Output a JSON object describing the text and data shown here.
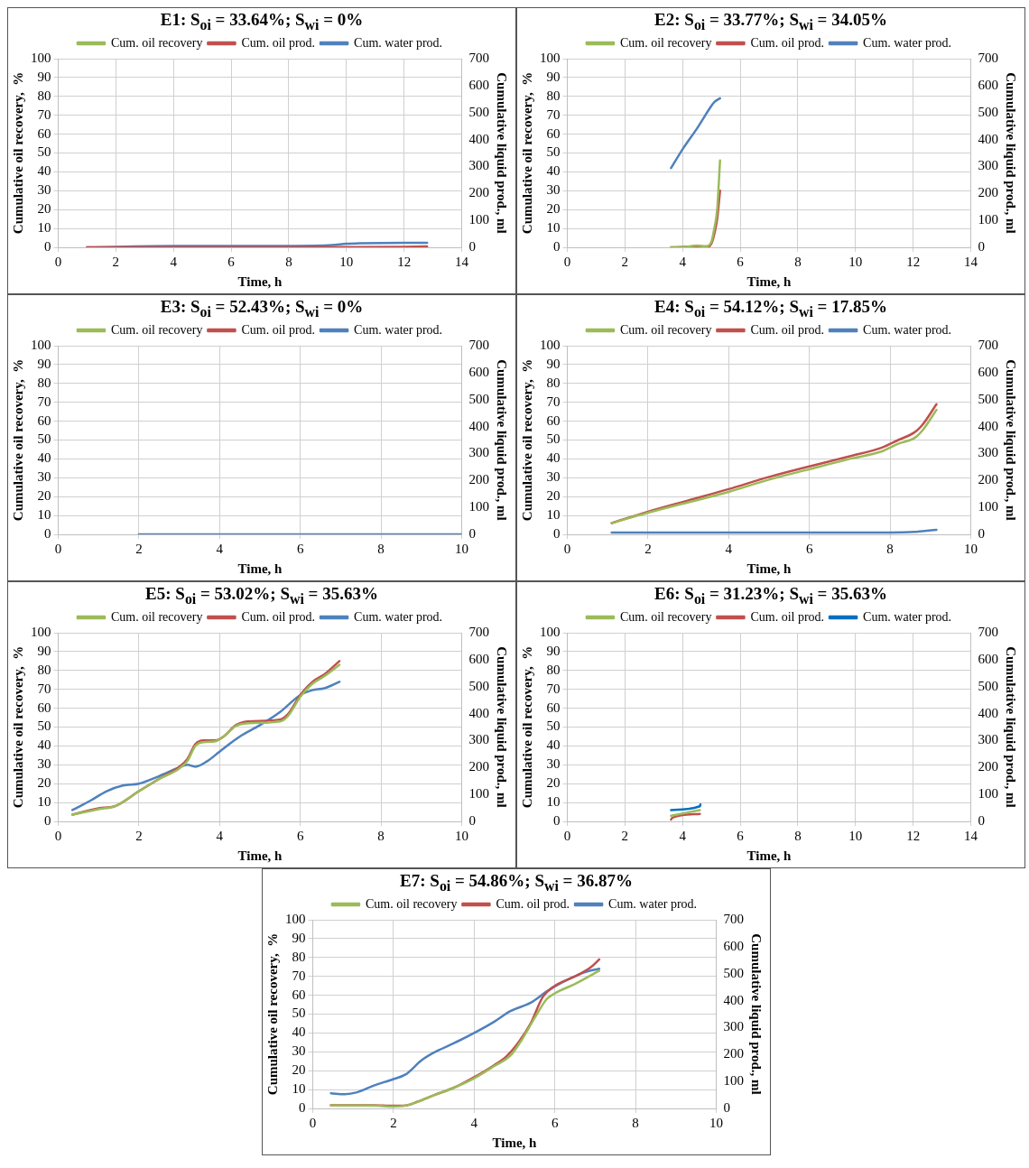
{
  "chart_data": [
    {
      "type": "line",
      "title": "E1: S$_{oi}$ = 33.64%; S$_{wi}$ = 0%",
      "xlabel": "Time, h",
      "ylabel": "Cumulative oil recovery,  %",
      "y2label": "Cumulative liquid prod., ml",
      "xlim": [
        0,
        14
      ],
      "xticks": [
        0,
        2,
        4,
        6,
        8,
        10,
        12,
        14
      ],
      "ylim": [
        0,
        100
      ],
      "yticks": [
        0,
        10,
        20,
        30,
        40,
        50,
        60,
        70,
        80,
        90,
        100
      ],
      "y2lim": [
        0,
        700
      ],
      "y2ticks": [
        0,
        100,
        200,
        300,
        400,
        500,
        600,
        700
      ],
      "grid": true,
      "legend": "top",
      "marker": "none",
      "series": [
        {
          "name": "Cum. oil recovery",
          "color": "#9bbb59"
        },
        {
          "name": "Cum. oil prod.",
          "color": "#c0504d",
          "axis": "y2",
          "x": [
            1,
            4,
            8,
            10,
            12,
            12.8
          ],
          "values": [
            0,
            0,
            0,
            1,
            2,
            3
          ]
        },
        {
          "name": "Cum. water prod.",
          "color": "#4f81bd",
          "axis": "y2",
          "x": [
            1,
            4,
            8,
            9.5,
            10,
            10.5,
            12,
            12.8
          ],
          "values": [
            0,
            5,
            5,
            8,
            13,
            15,
            17,
            17
          ]
        }
      ]
    },
    {
      "type": "line",
      "title": "E2: S$_{oi}$ = 33.77%; S$_{wi}$ = 34.05%",
      "xlabel": "Time, h",
      "ylabel": "Cumulative oil recovery,  %",
      "y2label": "Cumulative liquid prod., ml",
      "xlim": [
        0,
        14
      ],
      "xticks": [
        0,
        2,
        4,
        6,
        8,
        10,
        12,
        14
      ],
      "ylim": [
        0,
        100
      ],
      "yticks": [
        0,
        10,
        20,
        30,
        40,
        50,
        60,
        70,
        80,
        90,
        100
      ],
      "y2lim": [
        0,
        700
      ],
      "y2ticks": [
        0,
        100,
        200,
        300,
        400,
        500,
        600,
        700
      ],
      "grid": true,
      "legend": "top",
      "marker": "none",
      "series": [
        {
          "name": "Cum. oil recovery",
          "color": "#9bbb59",
          "x": [
            3.6,
            4,
            4.5,
            4.8,
            5,
            5.1,
            5.2,
            5.3
          ],
          "values": [
            0,
            0,
            1,
            0.5,
            3,
            10,
            20,
            46
          ]
        },
        {
          "name": "Cum. oil prod.",
          "color": "#c0504d",
          "axis": "y2",
          "x": [
            3.6,
            4.5,
            4.9,
            5,
            5.1,
            5.2,
            5.3
          ],
          "values": [
            0,
            3,
            3,
            14,
            49,
            105,
            210
          ]
        },
        {
          "name": "Cum. water prod.",
          "color": "#4f81bd",
          "axis": "y2",
          "x": [
            3.6,
            4,
            4.5,
            5,
            5.1,
            5.3
          ],
          "values": [
            294,
            364,
            441,
            525,
            539,
            553
          ]
        }
      ]
    },
    {
      "type": "line",
      "title": "E3: S$_{oi}$ = 52.43%; S$_{wi}$ = 0%",
      "xlabel": "Time, h",
      "ylabel": "Cumulative oil recovery,  %",
      "y2label": "Cumulative liquid prod., ml",
      "xlim": [
        0,
        10
      ],
      "xticks": [
        0,
        2,
        4,
        6,
        8,
        10
      ],
      "ylim": [
        0,
        100
      ],
      "yticks": [
        0,
        10,
        20,
        30,
        40,
        50,
        60,
        70,
        80,
        90,
        100
      ],
      "y2lim": [
        0,
        700
      ],
      "y2ticks": [
        0,
        100,
        200,
        300,
        400,
        500,
        600,
        700
      ],
      "grid": true,
      "legend": "top",
      "marker": "none",
      "series": [
        {
          "name": "Cum. oil recovery",
          "color": "#9bbb59"
        },
        {
          "name": "Cum. oil prod.",
          "color": "#c0504d",
          "axis": "y2"
        },
        {
          "name": "Cum. water prod.",
          "color": "#4f81bd",
          "axis": "y2",
          "x": [
            2,
            10
          ],
          "values": [
            0,
            0
          ]
        }
      ]
    },
    {
      "type": "line",
      "title": "E4: S$_{oi}$ = 54.12%; S$_{wi}$ = 17.85%",
      "xlabel": "Time, h",
      "ylabel": "Cumulative oil recovery,  %",
      "y2label": "Cumulative liquid prod., ml",
      "xlim": [
        0,
        10
      ],
      "xticks": [
        0,
        2,
        4,
        6,
        8,
        10
      ],
      "ylim": [
        0,
        100
      ],
      "yticks": [
        0,
        10,
        20,
        30,
        40,
        50,
        60,
        70,
        80,
        90,
        100
      ],
      "y2lim": [
        0,
        700
      ],
      "y2ticks": [
        0,
        100,
        200,
        300,
        400,
        500,
        600,
        700
      ],
      "grid": true,
      "legend": "top",
      "marker": "none",
      "series": [
        {
          "name": "Cum. oil recovery",
          "color": "#9bbb59",
          "x": [
            1.1,
            2,
            3,
            4,
            5,
            6,
            7,
            7.8,
            8.2,
            8.6,
            8.8,
            9.15
          ],
          "values": [
            6,
            11.5,
            17,
            22.5,
            29,
            34.5,
            40,
            44,
            48,
            51,
            55,
            66
          ]
        },
        {
          "name": "Cum. oil prod.",
          "color": "#c0504d",
          "axis": "y2",
          "x": [
            1.1,
            2,
            3,
            4,
            5,
            6,
            7,
            7.8,
            8.2,
            8.6,
            8.8,
            9.15
          ],
          "values": [
            42,
            84,
            126,
            168,
            213,
            252,
            290,
            322,
            350,
            378,
            406,
            483
          ]
        },
        {
          "name": "Cum. water prod.",
          "color": "#4f81bd",
          "axis": "y2",
          "x": [
            1.1,
            8,
            8.6,
            9.15
          ],
          "values": [
            7,
            7,
            9,
            17
          ]
        }
      ]
    },
    {
      "type": "line",
      "title": "E5: S$_{oi}$ = 53.02%; S$_{wi}$ = 35.63%",
      "xlabel": "Time, h",
      "ylabel": "Cumulative oil recovery,  %",
      "y2label": "Cumulative liquid prod., ml",
      "xlim": [
        0,
        10
      ],
      "xticks": [
        0,
        2,
        4,
        6,
        8,
        10
      ],
      "ylim": [
        0,
        100
      ],
      "yticks": [
        0,
        10,
        20,
        30,
        40,
        50,
        60,
        70,
        80,
        90,
        100
      ],
      "y2lim": [
        0,
        700
      ],
      "y2ticks": [
        0,
        100,
        200,
        300,
        400,
        500,
        600,
        700
      ],
      "grid": true,
      "legend": "top",
      "marker": "none",
      "series": [
        {
          "name": "Cum. oil recovery",
          "color": "#9bbb59",
          "x": [
            0.35,
            1,
            1.4,
            2,
            2.5,
            3,
            3.2,
            3.4,
            3.6,
            3.9,
            4.1,
            4.4,
            4.7,
            5.5,
            5.7,
            6,
            6.3,
            6.6,
            6.97
          ],
          "values": [
            3.5,
            6.5,
            8,
            16,
            22.5,
            28,
            32,
            40,
            42,
            42.5,
            45,
            50.5,
            52,
            53,
            56,
            66,
            73,
            77,
            83
          ]
        },
        {
          "name": "Cum. oil prod.",
          "color": "#c0504d",
          "axis": "y2",
          "x": [
            0.35,
            1,
            1.4,
            2,
            2.5,
            3,
            3.2,
            3.4,
            3.6,
            3.9,
            4.1,
            4.4,
            4.7,
            5.5,
            5.7,
            6,
            6.3,
            6.6,
            6.97
          ],
          "values": [
            25,
            49,
            56,
            112,
            158,
            203,
            231,
            287,
            301,
            301,
            315,
            357,
            371,
            378,
            399,
            469,
            518,
            546,
            595
          ]
        },
        {
          "name": "Cum. water prod.",
          "color": "#4f81bd",
          "axis": "y2",
          "x": [
            0.35,
            0.8,
            1.2,
            1.6,
            2,
            2.5,
            3,
            3.2,
            3.4,
            3.7,
            4,
            4.5,
            5,
            5.5,
            6,
            6.3,
            6.6,
            6.97
          ],
          "values": [
            42,
            77,
            112,
            133,
            140,
            168,
            200,
            210,
            203,
            224,
            259,
            315,
            357,
            406,
            469,
            487,
            494,
            518
          ]
        }
      ]
    },
    {
      "type": "line",
      "title": "E6: S$_{oi}$ = 31.23%; S$_{wi}$ = 35.63%",
      "xlabel": "Time, h",
      "ylabel": "Cumulative oil recovery,  %",
      "y2label": "Cumulative liquid prod., ml",
      "xlim": [
        0,
        14
      ],
      "xticks": [
        0,
        2,
        4,
        6,
        8,
        10,
        12,
        14
      ],
      "ylim": [
        0,
        100
      ],
      "yticks": [
        0,
        10,
        20,
        30,
        40,
        50,
        60,
        70,
        80,
        90,
        100
      ],
      "y2lim": [
        0,
        700
      ],
      "y2ticks": [
        0,
        100,
        200,
        300,
        400,
        500,
        600,
        700
      ],
      "grid": true,
      "legend": "top",
      "marker": "none",
      "series": [
        {
          "name": "Cum. oil recovery",
          "color": "#9bbb59",
          "x": [
            3.6,
            4.6
          ],
          "values": [
            3,
            6
          ]
        },
        {
          "name": "Cum. oil prod.",
          "color": "#c0504d",
          "axis": "y2",
          "x": [
            3.6,
            3.65,
            4.6
          ],
          "values": [
            7,
            14,
            28
          ]
        },
        {
          "name": "Cum. water prod.",
          "color": "#0070c0",
          "axis": "y2",
          "x": [
            3.6,
            4.6,
            4.62
          ],
          "values": [
            42,
            56,
            63
          ]
        }
      ]
    },
    {
      "type": "line",
      "title": "E7: S$_{oi}$ = 54.86%; S$_{wi}$ = 36.87%",
      "xlabel": "Time, h",
      "ylabel": "Cumulative oil recovery,  %",
      "y2label": "Cumulative liquid prod., ml",
      "xlim": [
        0,
        10
      ],
      "xticks": [
        0,
        2,
        4,
        6,
        8,
        10
      ],
      "ylim": [
        0,
        100
      ],
      "yticks": [
        0,
        10,
        20,
        30,
        40,
        50,
        60,
        70,
        80,
        90,
        100
      ],
      "y2lim": [
        0,
        700
      ],
      "y2ticks": [
        0,
        100,
        200,
        300,
        400,
        500,
        600,
        700
      ],
      "grid": true,
      "legend": "top",
      "marker": "none",
      "series": [
        {
          "name": "Cum. oil recovery",
          "color": "#9bbb59",
          "x": [
            0.45,
            1.5,
            2,
            2.3,
            2.6,
            3,
            3.5,
            4,
            4.5,
            4.9,
            5.2,
            5.5,
            5.8,
            6,
            6.5,
            7.1
          ],
          "values": [
            1.5,
            1.5,
            1,
            1.5,
            3.5,
            7,
            11,
            16,
            22.5,
            28,
            37,
            48,
            58,
            61,
            66,
            73
          ]
        },
        {
          "name": "Cum. oil prod.",
          "color": "#c0504d",
          "axis": "y2",
          "x": [
            0.45,
            1.5,
            2,
            2.3,
            2.6,
            3,
            3.5,
            4,
            4.5,
            4.8,
            5.1,
            5.4,
            5.7,
            6,
            6.5,
            6.9,
            7.1
          ],
          "values": [
            12,
            12,
            10,
            11,
            25,
            49,
            77,
            116,
            161,
            193,
            245,
            315,
            413,
            455,
            490,
            525,
            553
          ]
        },
        {
          "name": "Cum. water prod.",
          "color": "#4f81bd",
          "axis": "y2",
          "x": [
            0.45,
            0.8,
            1.1,
            1.5,
            2,
            2.3,
            2.7,
            3,
            3.5,
            4,
            4.5,
            4.9,
            5.4,
            5.8,
            6.2,
            6.6,
            6.8,
            7.1
          ],
          "values": [
            56,
            53,
            60,
            84,
            109,
            126,
            179,
            207,
            242,
            280,
            322,
            361,
            392,
            434,
            469,
            497,
            508,
            518
          ]
        }
      ]
    }
  ]
}
